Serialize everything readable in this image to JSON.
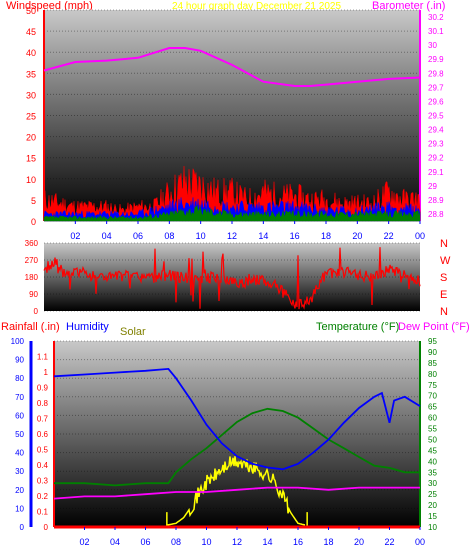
{
  "header": {
    "windspeed_label": "Windspeed (mph)",
    "title": "24 hour graph day   December 21 2025",
    "barometer_label": "Barometer (.in)"
  },
  "mid_header": {
    "rain_label": "Rainfall (.in)",
    "humidity_label": "Humidity",
    "solar_label": "Solar",
    "temperature_label": "Temperature (°F)",
    "dewpoint_label": "Dew Point (°F)"
  },
  "colors": {
    "wind": "#ff0000",
    "wind_avg": "#0000ff",
    "wind_green": "#008000",
    "barometer": "#ff00ff",
    "title": "#ffff00",
    "direction": "#ff0000",
    "humidity": "#0000ff",
    "temperature": "#008000",
    "dewpoint": "#ff00ff",
    "solar": "#ffff00",
    "rain": "#ff0000",
    "rain_axis": "#0000ff"
  },
  "chart_data": [
    {
      "type": "line",
      "name": "wind-barometer",
      "x_tick_labels": [
        "02",
        "04",
        "06",
        "08",
        "10",
        "12",
        "14",
        "16",
        "18",
        "20",
        "22",
        "00"
      ],
      "y_left_ticks": [
        "0",
        "5",
        "10",
        "15",
        "20",
        "25",
        "30",
        "35",
        "40",
        "45",
        "50"
      ],
      "y_left_range": [
        0,
        50
      ],
      "y_right_ticks": [
        "28.8",
        "28.9",
        "29",
        "29.1",
        "29.2",
        "29.3",
        "29.4",
        "29.5",
        "29.6",
        "29.7",
        "29.8",
        "29.9",
        "30",
        "30.1",
        "30.2"
      ],
      "y_right_range": [
        28.75,
        30.25
      ],
      "barometer": {
        "hours": [
          0,
          2,
          4,
          6,
          8,
          9,
          10,
          12,
          14,
          16,
          17,
          18,
          20,
          22,
          24
        ],
        "values": [
          29.82,
          29.88,
          29.89,
          29.91,
          29.98,
          29.98,
          29.96,
          29.86,
          29.74,
          29.71,
          29.71,
          29.72,
          29.74,
          29.76,
          29.77
        ]
      },
      "wind_gust": {
        "hours": [
          0,
          1,
          2,
          3,
          4,
          5,
          6,
          7,
          8,
          9,
          10,
          11,
          12,
          13,
          14,
          15,
          16,
          17,
          18,
          19,
          20,
          21,
          22,
          23,
          24
        ],
        "values": [
          6,
          5,
          4,
          4,
          4,
          3,
          4,
          4,
          8,
          11,
          10,
          8,
          8,
          6,
          8,
          7,
          7,
          6,
          6,
          5,
          5,
          5,
          8,
          6,
          6
        ]
      },
      "wind_avg": {
        "hours": [
          0,
          2,
          4,
          6,
          8,
          9,
          10,
          12,
          14,
          16,
          18,
          20,
          22,
          24
        ],
        "values": [
          2,
          2,
          2,
          2,
          4,
          5,
          5,
          4,
          4,
          4,
          3,
          3,
          4,
          3
        ]
      },
      "wind_low": {
        "hours": [
          0,
          2,
          4,
          6,
          8,
          9,
          10,
          12,
          14,
          16,
          18,
          20,
          22,
          24
        ],
        "values": [
          1,
          1,
          1,
          1,
          2,
          3,
          3,
          2,
          2,
          2,
          2,
          2,
          2,
          2
        ]
      }
    },
    {
      "type": "line",
      "name": "wind-direction",
      "y_ticks": [
        "360",
        "270",
        "180",
        "90",
        "0"
      ],
      "y_range": [
        0,
        360
      ],
      "compass_labels": [
        "N",
        "W",
        "S",
        "E",
        "N"
      ],
      "direction": {
        "hours": [
          0,
          0.7,
          1,
          2,
          3,
          4,
          5,
          6,
          7,
          8,
          9,
          10,
          11,
          12,
          13,
          14,
          15,
          16,
          16.5,
          17,
          18,
          19,
          20,
          21,
          22,
          23,
          24
        ],
        "values": [
          220,
          260,
          200,
          210,
          190,
          180,
          185,
          180,
          175,
          190,
          175,
          170,
          180,
          160,
          150,
          170,
          120,
          40,
          30,
          60,
          200,
          210,
          190,
          180,
          220,
          200,
          160
        ]
      }
    },
    {
      "type": "line",
      "name": "temp-humidity-solar-rain",
      "x_tick_labels": [
        "02",
        "04",
        "06",
        "08",
        "10",
        "12",
        "14",
        "16",
        "18",
        "20",
        "22",
        "00"
      ],
      "y_left_outer_ticks": [
        "0",
        "10",
        "20",
        "30",
        "40",
        "50",
        "60",
        "70",
        "80",
        "90",
        "100"
      ],
      "y_left_outer_range": [
        0,
        100
      ],
      "y_left_inner_ticks": [
        "0",
        "0.1",
        "0.2",
        "0.3",
        "0.4",
        "0.5",
        "0.6",
        "0.7",
        "0.8",
        "0.9",
        "1",
        "1.1"
      ],
      "y_left_inner_range": [
        0,
        1.2
      ],
      "y_right_ticks": [
        "10",
        "15",
        "20",
        "25",
        "30",
        "35",
        "40",
        "45",
        "50",
        "55",
        "60",
        "65",
        "70",
        "75",
        "80",
        "85",
        "90",
        "95"
      ],
      "y_right_range": [
        10,
        95
      ],
      "humidity": {
        "hours": [
          0,
          2,
          4,
          6,
          7.5,
          8,
          9,
          10,
          11,
          12,
          13,
          14,
          15,
          16,
          17,
          18,
          19,
          20,
          21,
          21.5,
          22,
          22.3,
          23,
          24
        ],
        "values": [
          81,
          82,
          83,
          84,
          85,
          80,
          68,
          55,
          45,
          38,
          34,
          32,
          31,
          34,
          40,
          47,
          56,
          64,
          70,
          72,
          56,
          68,
          70,
          65
        ]
      },
      "temperature": {
        "hours": [
          0,
          2,
          4,
          6,
          7.5,
          8,
          9,
          10,
          11,
          12,
          13,
          14,
          15,
          16,
          17,
          18,
          19,
          20,
          21,
          22,
          23,
          24
        ],
        "values": [
          30,
          30,
          29,
          30,
          30,
          35,
          41,
          46,
          52,
          58,
          62,
          64,
          63,
          60,
          55,
          50,
          46,
          42,
          38,
          37,
          35,
          35
        ]
      },
      "dewpoint": {
        "hours": [
          0,
          2,
          4,
          6,
          8,
          10,
          12,
          14,
          16,
          18,
          20,
          22,
          24
        ],
        "values": [
          23,
          24,
          24,
          25,
          26,
          26,
          27,
          28,
          28,
          27,
          28,
          28,
          28
        ]
      },
      "solar": {
        "hours": [
          7.4,
          8,
          8.5,
          9,
          9.5,
          10,
          10.5,
          11,
          11.5,
          12,
          12.5,
          13,
          13.5,
          14,
          14.5,
          15,
          15.5,
          16,
          16.5
        ],
        "values": [
          1,
          2,
          5,
          11,
          18,
          24,
          27,
          31,
          34,
          35,
          33,
          32,
          30,
          28,
          24,
          17,
          8,
          2,
          1
        ]
      },
      "rain": {
        "hours": [
          0,
          24
        ],
        "values": [
          0,
          0
        ]
      }
    }
  ]
}
